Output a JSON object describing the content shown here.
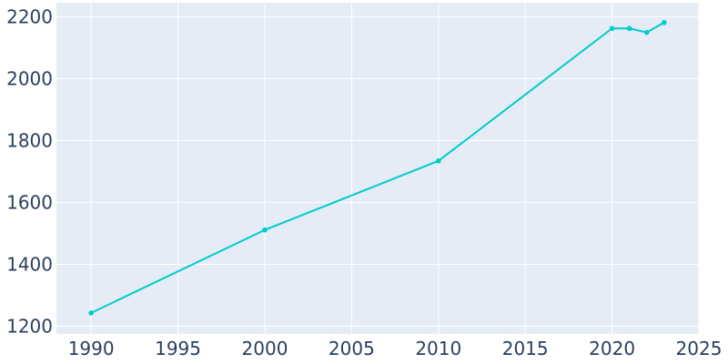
{
  "chart_data": {
    "type": "line",
    "title": "",
    "xlabel": "",
    "ylabel": "",
    "xlim": [
      1988,
      2025
    ],
    "ylim": [
      1175,
      2245
    ],
    "x_ticks": [
      1990,
      1995,
      2000,
      2005,
      2010,
      2015,
      2020,
      2025
    ],
    "y_ticks": [
      1200,
      1400,
      1600,
      1800,
      2000,
      2200
    ],
    "grid": true,
    "legend": "none",
    "colors": {
      "plot_background": "#e5ecf6",
      "grid": "#ffffff",
      "line": "#00cccc",
      "tick_text": "#2a3f5f"
    },
    "series": [
      {
        "x": [
          1990,
          2000,
          2010,
          2020,
          2021,
          2022,
          2023
        ],
        "y": [
          1243,
          1511,
          1734,
          2162,
          2162,
          2149,
          2181
        ]
      }
    ]
  }
}
